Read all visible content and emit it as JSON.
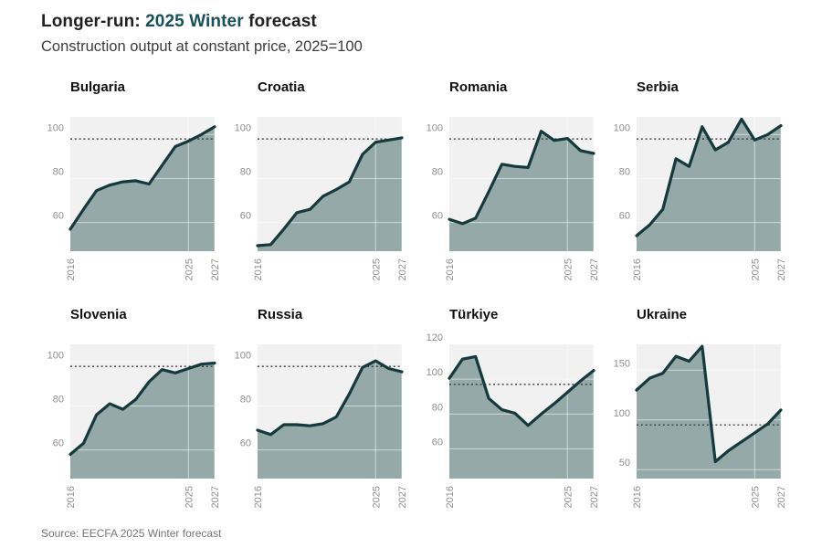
{
  "header": {
    "title_prefix": "Longer-run: ",
    "title_highlight": "2025 Winter",
    "title_suffix": " forecast",
    "subtitle": "Construction output at constant price, 2025=100"
  },
  "footer": {
    "source": "Source: EECFA 2025 Winter forecast"
  },
  "colors": {
    "accent_teal": "#16505a",
    "line": "#143a3d",
    "area_fill": "#96a9a9",
    "plot_bg": "#f1f1f1",
    "gridline": "#ffffff",
    "reference_line": "#262626",
    "tick_label": "#8f8f8f"
  },
  "chart_data": [
    {
      "type": "area",
      "title": "Bulgaria",
      "x": [
        2016,
        2017,
        2018,
        2019,
        2020,
        2021,
        2022,
        2023,
        2024,
        2025,
        2026,
        2027
      ],
      "values": [
        57,
        66,
        74.5,
        77,
        78.5,
        79,
        77.5,
        86,
        94.5,
        97,
        100,
        103.5
      ],
      "ylim": [
        47,
        108
      ],
      "y_ticks": [
        60,
        80,
        100
      ],
      "x_tick_labels": [
        2016,
        2025,
        2027
      ],
      "reference_line": 98
    },
    {
      "type": "area",
      "title": "Croatia",
      "x": [
        2016,
        2017,
        2018,
        2019,
        2020,
        2021,
        2022,
        2023,
        2024,
        2025,
        2026,
        2027
      ],
      "values": [
        49.5,
        50,
        57,
        64.5,
        66,
        72,
        75,
        78.5,
        91,
        96.5,
        97.5,
        98.5
      ],
      "ylim": [
        47,
        108
      ],
      "y_ticks": [
        60,
        80,
        100
      ],
      "x_tick_labels": [
        2016,
        2025,
        2027
      ],
      "reference_line": 98
    },
    {
      "type": "area",
      "title": "Romania",
      "x": [
        2016,
        2017,
        2018,
        2019,
        2020,
        2021,
        2022,
        2023,
        2024,
        2025,
        2026,
        2027
      ],
      "values": [
        61.5,
        59.5,
        62,
        74,
        86.5,
        85.5,
        85,
        101.5,
        97.3,
        98.2,
        92.7,
        91.4
      ],
      "ylim": [
        47,
        108
      ],
      "y_ticks": [
        60,
        80,
        100
      ],
      "x_tick_labels": [
        2016,
        2025,
        2027
      ],
      "reference_line": 98
    },
    {
      "type": "area",
      "title": "Serbia",
      "x": [
        2016,
        2017,
        2018,
        2019,
        2020,
        2021,
        2022,
        2023,
        2024,
        2025,
        2026,
        2027
      ],
      "values": [
        54,
        59,
        66,
        89,
        85.5,
        103.5,
        93,
        96.5,
        107,
        97.5,
        100,
        104
      ],
      "ylim": [
        47,
        108
      ],
      "y_ticks": [
        60,
        80,
        100
      ],
      "x_tick_labels": [
        2016,
        2025,
        2027
      ],
      "reference_line": 98
    },
    {
      "type": "area",
      "title": "Slovenia",
      "x": [
        2016,
        2017,
        2018,
        2019,
        2020,
        2021,
        2022,
        2023,
        2024,
        2025,
        2026,
        2027
      ],
      "values": [
        58,
        63,
        76,
        81,
        78.5,
        83,
        91,
        96.5,
        95,
        97,
        99,
        99.5
      ],
      "ylim": [
        47,
        108
      ],
      "y_ticks": [
        60,
        80,
        100
      ],
      "x_tick_labels": [
        2016,
        2025,
        2027
      ],
      "reference_line": 98
    },
    {
      "type": "area",
      "title": "Russia",
      "x": [
        2016,
        2017,
        2018,
        2019,
        2020,
        2021,
        2022,
        2023,
        2024,
        2025,
        2026,
        2027
      ],
      "values": [
        69,
        67,
        71.5,
        71.5,
        71,
        72,
        75,
        85.5,
        97.5,
        100.5,
        97,
        95.5
      ],
      "ylim": [
        47,
        108
      ],
      "y_ticks": [
        60,
        80,
        100
      ],
      "x_tick_labels": [
        2016,
        2025,
        2027
      ],
      "reference_line": 98
    },
    {
      "type": "area",
      "title": "Türkiye",
      "x": [
        2016,
        2017,
        2018,
        2019,
        2020,
        2021,
        2022,
        2023,
        2024,
        2025,
        2026,
        2027
      ],
      "values": [
        100.5,
        111.5,
        113,
        89,
        82.5,
        80.5,
        73.5,
        80,
        86,
        92.5,
        99,
        105
      ],
      "ylim": [
        43,
        120
      ],
      "y_ticks": [
        60,
        80,
        100,
        120
      ],
      "x_tick_labels": [
        2016,
        2025,
        2027
      ],
      "reference_line": 97
    },
    {
      "type": "area",
      "title": "Ukraine",
      "x": [
        2016,
        2017,
        2018,
        2019,
        2020,
        2021,
        2022,
        2023,
        2024,
        2025,
        2026,
        2027
      ],
      "values": [
        130,
        142,
        147,
        164,
        159,
        174,
        58,
        69,
        78,
        87,
        96,
        110
      ],
      "ylim": [
        41,
        176
      ],
      "y_ticks": [
        50,
        100,
        150
      ],
      "x_tick_labels": [
        2016,
        2025,
        2027
      ],
      "reference_line": 95
    }
  ]
}
